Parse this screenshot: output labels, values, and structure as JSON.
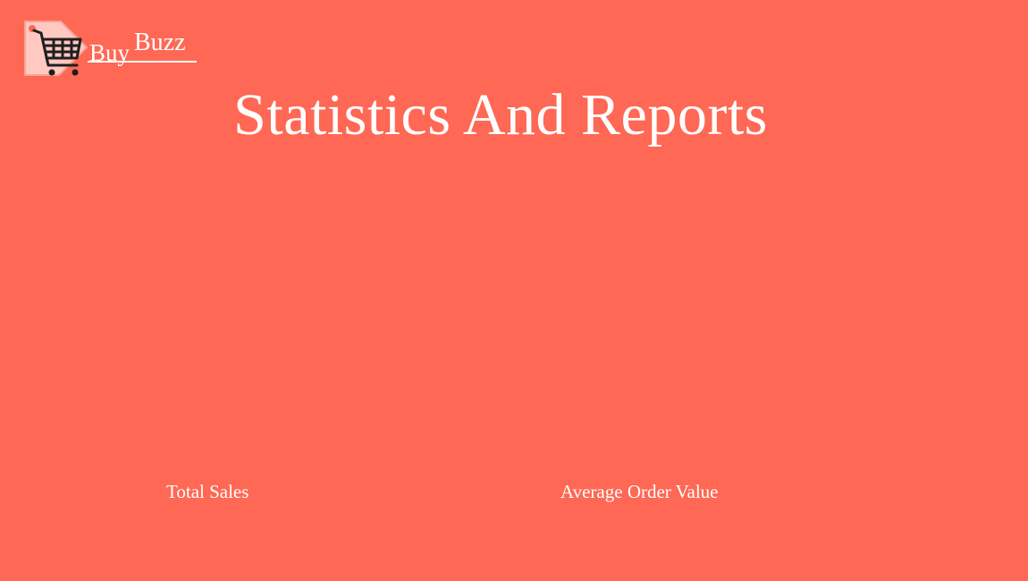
{
  "brand": {
    "name_part1": "Buy",
    "name_part2": "Buzz",
    "logo_icon": "shopping-cart-tag-icon"
  },
  "page": {
    "title": "Statistics And Reports"
  },
  "metrics": [
    {
      "label": "Total Sales"
    },
    {
      "label": "Average Order Value"
    }
  ],
  "colors": {
    "background": "#FF6854",
    "text": "#FFFFFF",
    "tag": "#FFC9C1",
    "cart": "#1F1F1F"
  }
}
